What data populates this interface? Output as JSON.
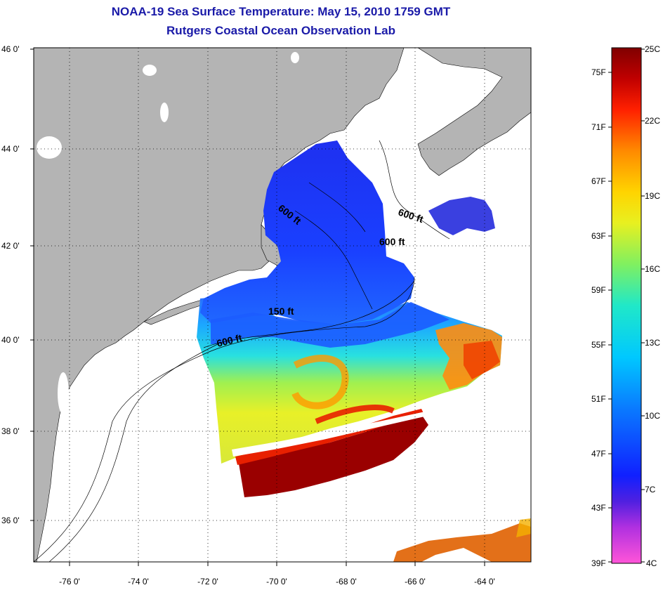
{
  "header": {
    "title_line1": "NOAA-19 Sea Surface Temperature:  May 15, 2010 1759 GMT",
    "title_line2": "Rutgers Coastal Ocean Observation Lab"
  },
  "map": {
    "lat_labels": [
      "46 0'",
      "44 0'",
      "42 0'",
      "40 0'",
      "38 0'",
      "36 0'"
    ],
    "lon_labels": [
      "-76 0'",
      "-74 0'",
      "-72 0'",
      "-70 0'",
      "-68 0'",
      "-66 0'",
      "-64 0'"
    ],
    "contour_labels": [
      "600 ft",
      "600 ft",
      "600 ft",
      "150 ft",
      "600 ft"
    ],
    "colors": {
      "land": "#b4b4b4",
      "ocean": "#ffffff",
      "title": "#1a1aa8"
    }
  },
  "colorbar": {
    "fahrenheit_labels": [
      "75F",
      "71F",
      "67F",
      "63F",
      "59F",
      "55F",
      "51F",
      "47F",
      "43F",
      "39F"
    ],
    "celsius_labels": [
      "25C",
      "22C",
      "19C",
      "16C",
      "13C",
      "10C",
      "7C",
      "4C"
    ]
  }
}
